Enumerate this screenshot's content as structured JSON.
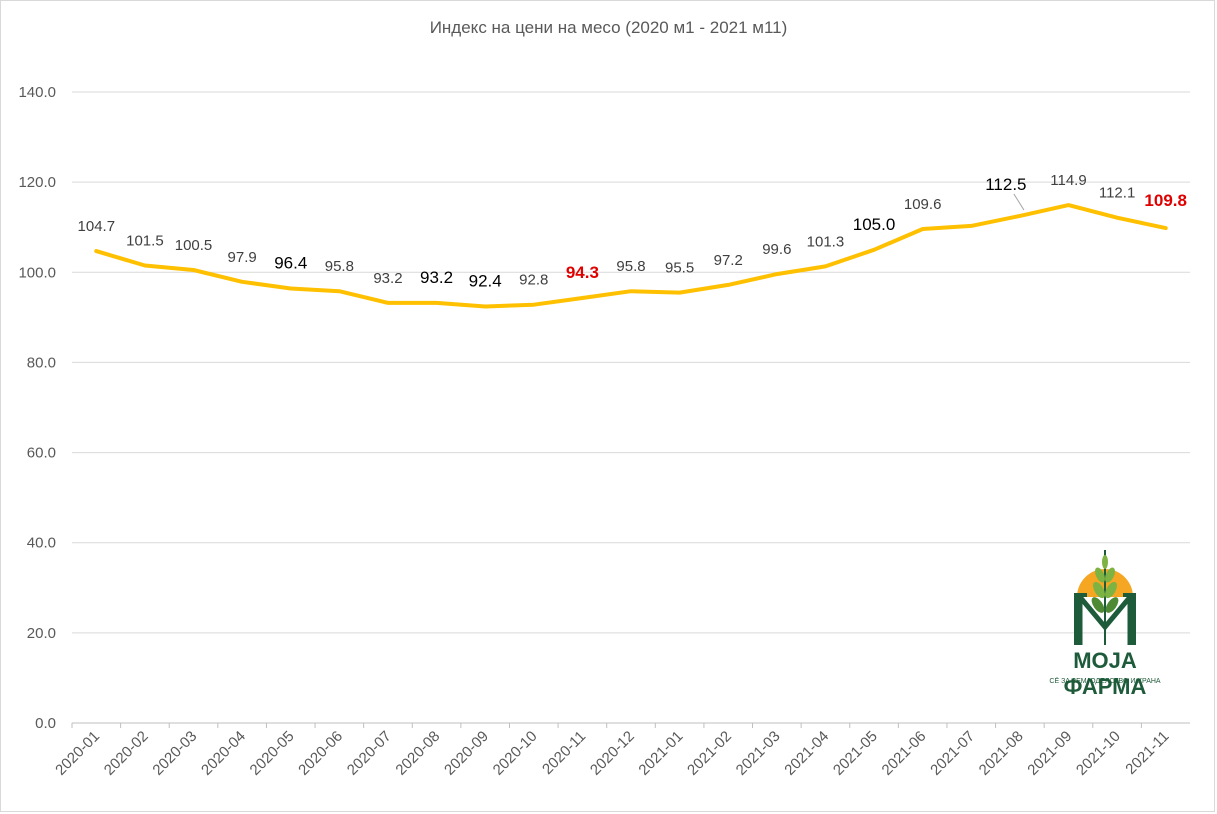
{
  "chart_data": {
    "type": "line",
    "title": "Индекс на цени на месо  (2020 м1 - 2021 м11)",
    "xlabel": "",
    "ylabel": "",
    "ylim": [
      0,
      140
    ],
    "y_ticks": [
      "0.0",
      "20.0",
      "40.0",
      "60.0",
      "80.0",
      "100.0",
      "120.0",
      "140.0"
    ],
    "grid": true,
    "legend": "none",
    "categories": [
      "2020-01",
      "2020-02",
      "2020-03",
      "2020-04",
      "2020-05",
      "2020-06",
      "2020-07",
      "2020-08",
      "2020-09",
      "2020-10",
      "2020-11",
      "2020-12",
      "2021-01",
      "2021-02",
      "2021-03",
      "2021-04",
      "2021-05",
      "2021-06",
      "2021-07",
      "2021-08",
      "2021-09",
      "2021-10",
      "2021-11"
    ],
    "series": [
      {
        "values": [
          104.7,
          101.5,
          100.5,
          97.9,
          96.4,
          95.8,
          93.2,
          93.2,
          92.4,
          92.8,
          94.3,
          95.8,
          95.5,
          97.2,
          99.6,
          101.3,
          105.0,
          109.6,
          110.3,
          112.5,
          114.9,
          112.1,
          109.8
        ],
        "data_labels": [
          "104.7",
          "101.5",
          "100.5",
          "97.9",
          "96.4",
          "95.8",
          "93.2",
          "93.2",
          "92.4",
          "92.8",
          "94.3",
          "95.8",
          "95.5",
          "97.2",
          "99.6",
          "101.3",
          "105.0",
          "109.6",
          "",
          "112.5",
          "114.9",
          "112.1",
          "109.8"
        ],
        "color": "#ffc000"
      }
    ],
    "highlight_color": "#e00000",
    "highlighted_labels": [
      "2020-11",
      "2021-11"
    ]
  },
  "logo": {
    "name": "МОЈА ФАРМА",
    "tagline": "СЁ ЗА ЗЕМЈОДЕЛСТВО И ХРАНА",
    "colors": {
      "green": "#1e5b3a",
      "leaf": "#7cb342",
      "sun": "#f5a623"
    }
  }
}
